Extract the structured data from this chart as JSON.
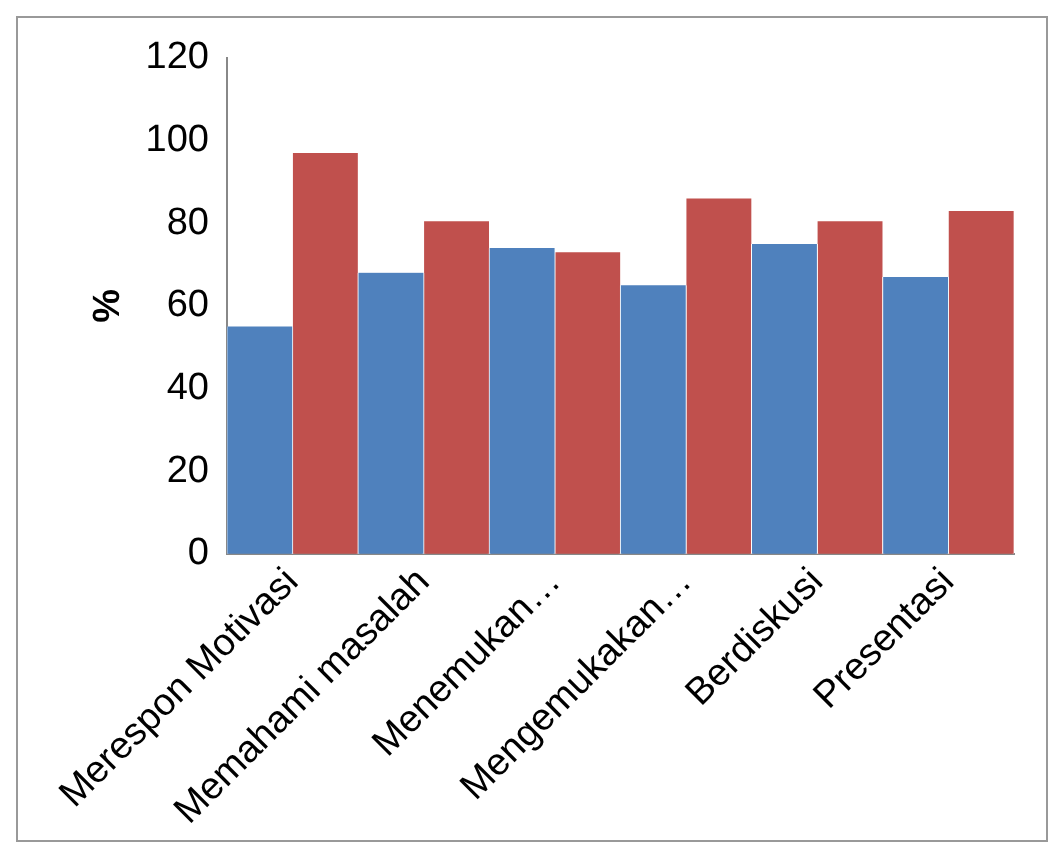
{
  "chart_data": {
    "type": "bar",
    "ylabel": "%",
    "categories": [
      "Merespon Motivasi",
      "Memahami masalah",
      "Menemukan…",
      "Mengemukakan…",
      "Berdiskusi",
      "Presentasi"
    ],
    "series": [
      {
        "color": "#4f81bd",
        "values": [
          55,
          68,
          74,
          65,
          75,
          67
        ]
      },
      {
        "color": "#c0504d",
        "values": [
          97,
          80.5,
          73,
          86,
          80.5,
          83
        ]
      }
    ],
    "ylim": [
      0,
      120
    ],
    "yticks": [
      0,
      20,
      40,
      60,
      80,
      100,
      120
    ],
    "grid": false,
    "legend": false
  }
}
